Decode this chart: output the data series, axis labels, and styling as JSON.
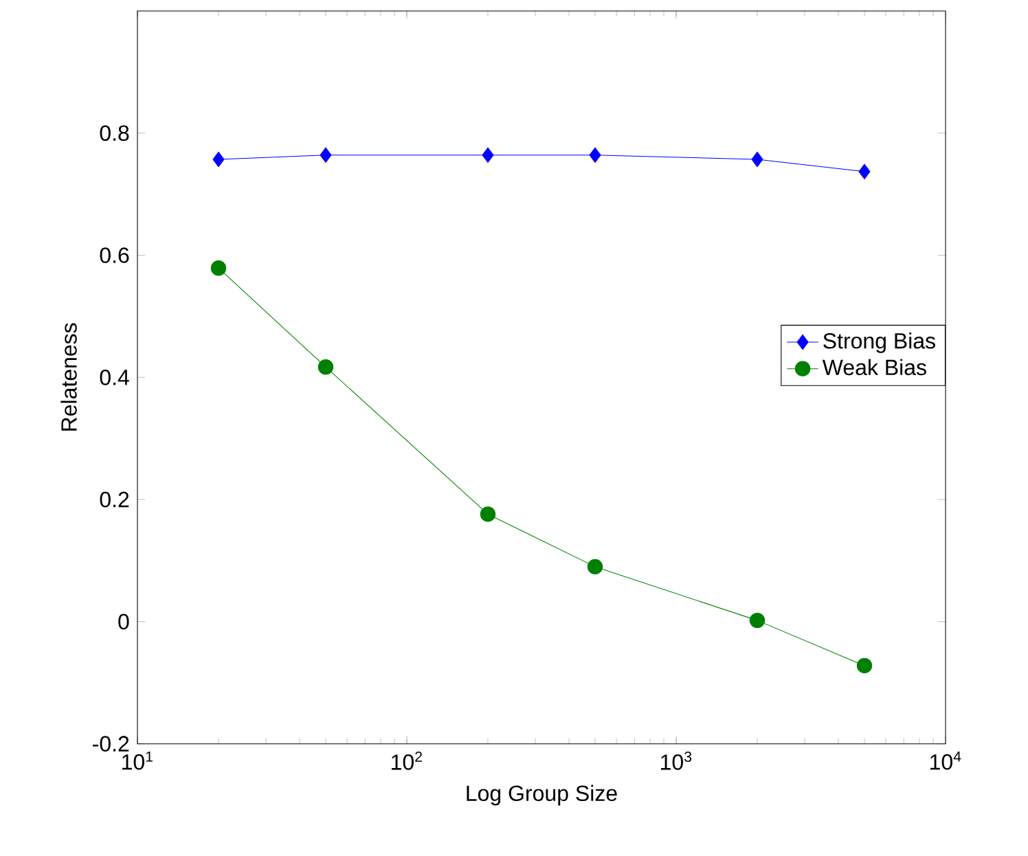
{
  "chart_data": {
    "type": "line",
    "xlabel": "Log Group Size",
    "ylabel": "Relateness",
    "log": "x",
    "xlim": [
      10,
      10000
    ],
    "ylim": [
      -0.2,
      1
    ],
    "xticks": [
      {
        "value": 10,
        "label": "10$^{1}$"
      },
      {
        "value": 100,
        "label": "10$^{2}$"
      },
      {
        "value": 1000,
        "label": "10$^{3}$"
      },
      {
        "value": 10000,
        "label": "10$^{4}$"
      }
    ],
    "yticks": [
      -0.2,
      0,
      0.2,
      0.4,
      0.6,
      0.8
    ],
    "x": [
      20,
      50,
      200,
      500,
      2000,
      5000
    ],
    "series": [
      {
        "name": "Strong Bias",
        "color": "#0000ff",
        "marker": "diamond",
        "values": [
          0.757,
          0.764,
          0.764,
          0.764,
          0.757,
          0.737
        ]
      },
      {
        "name": "Weak Bias",
        "color": "#008000",
        "marker": "circle",
        "values": [
          0.579,
          0.417,
          0.176,
          0.09,
          0.002,
          -0.072
        ]
      }
    ],
    "legend": "right",
    "grid": false
  }
}
